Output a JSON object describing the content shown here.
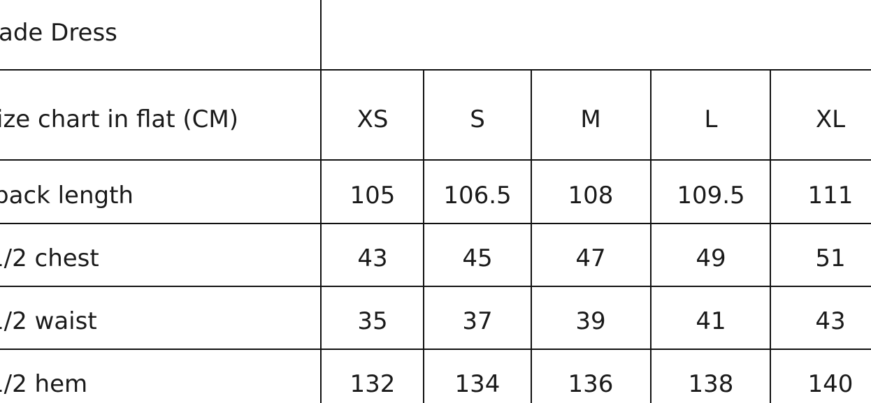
{
  "title": "ade Dress",
  "header": {
    "label": "ize chart in flat (CM)",
    "sizes": [
      "XS",
      "S",
      "M",
      "L",
      "XL"
    ]
  },
  "rows": [
    {
      "label": "back length",
      "values": [
        "105",
        "106.5",
        "108",
        "109.5",
        "111"
      ]
    },
    {
      "label": "1/2 chest",
      "values": [
        "43",
        "45",
        "47",
        "49",
        "51"
      ]
    },
    {
      "label": "1/2 waist",
      "values": [
        "35",
        "37",
        "39",
        "41",
        "43"
      ]
    },
    {
      "label": "1/2 hem",
      "values": [
        "132",
        "134",
        "136",
        "138",
        "140"
      ]
    }
  ]
}
